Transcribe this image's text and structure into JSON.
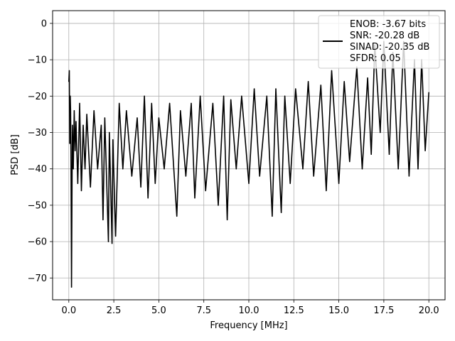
{
  "chart_data": {
    "type": "line",
    "xlabel": "Frequency [MHz]",
    "ylabel": "PSD [dB]",
    "xlim": [
      -0.9,
      20.9
    ],
    "ylim": [
      -76,
      3.5
    ],
    "xticks": [
      0.0,
      2.5,
      5.0,
      7.5,
      10.0,
      12.5,
      15.0,
      17.5,
      20.0
    ],
    "xtick_labels": [
      "0.0",
      "2.5",
      "5.0",
      "7.5",
      "10.0",
      "12.5",
      "15.0",
      "17.5",
      "20.0"
    ],
    "yticks": [
      0,
      -10,
      -20,
      -30,
      -40,
      -50,
      -60,
      -70
    ],
    "ytick_labels": [
      "0",
      "−10",
      "−20",
      "−30",
      "−40",
      "−50",
      "−60",
      "−70"
    ],
    "grid": true,
    "legend_position": "top-right",
    "series": [
      {
        "legend_lines": [
          "ENOB: -3.67 bits",
          "SNR: -20.28 dB",
          "SINAD: -20.35 dB",
          "SFDR: 0.05"
        ],
        "color": "#000000",
        "x": [
          0.0,
          0.03,
          0.05,
          0.08,
          0.1,
          0.12,
          0.15,
          0.18,
          0.2,
          0.25,
          0.3,
          0.35,
          0.4,
          0.5,
          0.6,
          0.7,
          0.8,
          0.9,
          1.0,
          1.2,
          1.4,
          1.6,
          1.8,
          1.9,
          2.0,
          2.2,
          2.25,
          2.4,
          2.45,
          2.6,
          2.8,
          3.0,
          3.2,
          3.5,
          3.8,
          4.0,
          4.2,
          4.4,
          4.6,
          4.8,
          5.0,
          5.3,
          5.6,
          6.0,
          6.2,
          6.5,
          6.8,
          7.0,
          7.3,
          7.6,
          8.0,
          8.3,
          8.6,
          8.8,
          9.0,
          9.3,
          9.6,
          10.0,
          10.3,
          10.6,
          11.0,
          11.3,
          11.5,
          11.8,
          12.0,
          12.3,
          12.6,
          13.0,
          13.3,
          13.6,
          14.0,
          14.3,
          14.6,
          15.0,
          15.3,
          15.6,
          16.0,
          16.3,
          16.6,
          16.8,
          17.0,
          17.3,
          17.5,
          17.8,
          18.0,
          18.3,
          18.6,
          18.9,
          19.2,
          19.4,
          19.6,
          19.8,
          20.0
        ],
        "y": [
          -16,
          -13,
          -33,
          -20,
          -24,
          -35,
          -72.5,
          -45,
          -28,
          -40,
          -24,
          -35,
          -27,
          -44,
          -22,
          -46,
          -28,
          -40,
          -25,
          -45,
          -24,
          -40,
          -28,
          -54,
          -26,
          -60,
          -30,
          -60.5,
          -32,
          -58.5,
          -22,
          -40,
          -24,
          -42,
          -26,
          -45,
          -20,
          -48,
          -22,
          -44,
          -26,
          -40,
          -22,
          -53,
          -24,
          -42,
          -22,
          -48,
          -20,
          -46,
          -22,
          -50,
          -20,
          -54,
          -21,
          -40,
          -20,
          -44,
          -18,
          -42,
          -20,
          -53,
          -18,
          -52,
          -20,
          -44,
          -18,
          -40,
          -16,
          -42,
          -17,
          -46,
          -13,
          -44,
          -16,
          -38,
          -12,
          -40,
          -15,
          -36,
          -6,
          -30,
          -5,
          -36,
          -8,
          -40,
          -5,
          -42,
          -10,
          -40,
          -10,
          -35,
          -19
        ]
      }
    ]
  }
}
